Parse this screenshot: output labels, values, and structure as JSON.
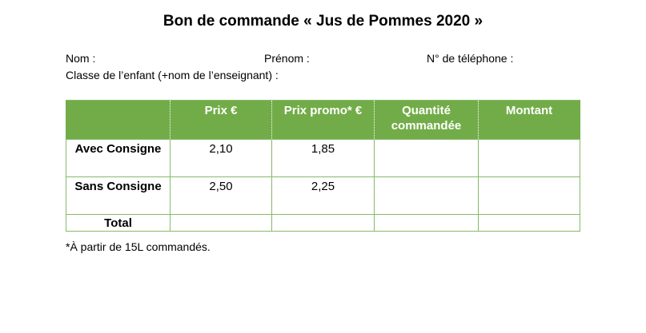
{
  "title": "Bon de commande « Jus de Pommes 2020 »",
  "fields": {
    "nom": "Nom :",
    "prenom": "Prénom :",
    "telephone": "N° de téléphone :",
    "classe": "Classe de l’enfant (+nom de l’enseignant) :"
  },
  "table": {
    "headers": [
      "",
      "Prix €",
      "Prix promo* €",
      "Quantité commandée",
      "Montant"
    ],
    "rows": [
      {
        "label": "Avec Consigne",
        "prix": "2,10",
        "promo": "1,85",
        "quantite": "",
        "montant": ""
      },
      {
        "label": "Sans Consigne",
        "prix": "2,50",
        "promo": "2,25",
        "quantite": "",
        "montant": ""
      },
      {
        "label": "Total",
        "prix": "",
        "promo": "",
        "quantite": "",
        "montant": ""
      }
    ]
  },
  "footnote": "*À partir de 15L commandés.",
  "colors": {
    "header_bg": "#72ac48",
    "border": "#86b96a"
  }
}
